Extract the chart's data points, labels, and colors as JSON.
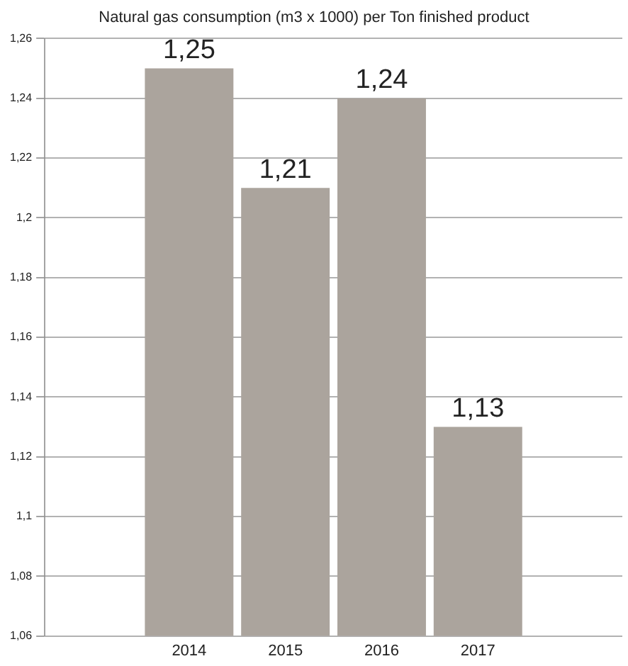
{
  "chart_data": {
    "type": "bar",
    "title": "Natural gas consumption (m3 x 1000) per Ton finished product",
    "categories": [
      null,
      "2014",
      "2015",
      "2016",
      "2017",
      null
    ],
    "values": [
      null,
      1.25,
      1.21,
      1.24,
      1.13,
      null
    ],
    "value_labels": [
      null,
      "1,25",
      "1,21",
      "1,24",
      "1,13",
      null
    ],
    "color": "#aba49d",
    "ylim": [
      1.06,
      1.26
    ],
    "yticks": [
      {
        "value": 1.06,
        "label": "1,06"
      },
      {
        "value": 1.08,
        "label": "1,08"
      },
      {
        "value": 1.1,
        "label": "1,1"
      },
      {
        "value": 1.12,
        "label": "1,12"
      },
      {
        "value": 1.14,
        "label": "1,14"
      },
      {
        "value": 1.16,
        "label": "1,16"
      },
      {
        "value": 1.18,
        "label": "1,18"
      },
      {
        "value": 1.2,
        "label": "1,2"
      },
      {
        "value": 1.22,
        "label": "1,22"
      },
      {
        "value": 1.24,
        "label": "1,24"
      },
      {
        "value": 1.26,
        "label": "1,26"
      }
    ],
    "grid": "y"
  }
}
